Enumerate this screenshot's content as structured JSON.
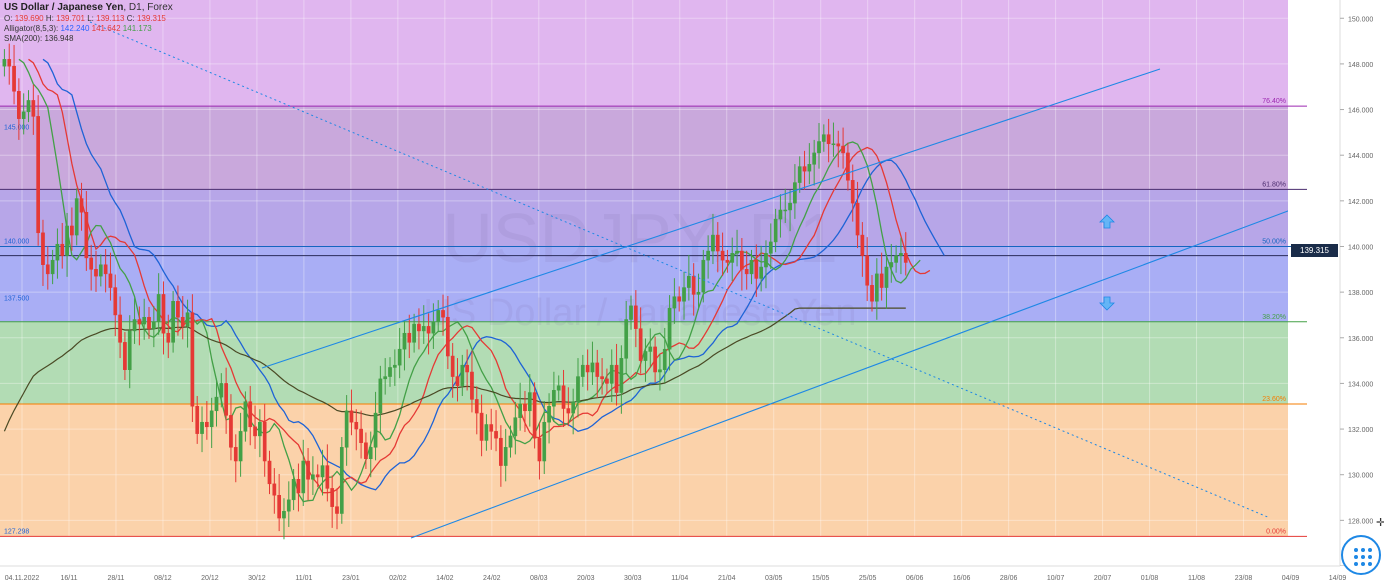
{
  "header": {
    "symbol": "US Dollar / Japanese Yen",
    "timeframe": "D1",
    "market": "Forex",
    "ohlc": {
      "o_label": "O:",
      "o": "139.690",
      "h_label": "H:",
      "h": "139.701",
      "l_label": "L:",
      "l": "139.113",
      "c_label": "C:",
      "c": "139.315"
    },
    "alligator": {
      "label": "Alligator(8,5,3):",
      "jaw": "142.240",
      "teeth": "141.642",
      "lips": "141.173"
    },
    "sma": {
      "label": "SMA(200):",
      "value": "136.948"
    }
  },
  "watermark": {
    "line1": "USDJPY, D1",
    "line2": "US Dollar / Japanese Yen"
  },
  "current_price": "139.315",
  "chart_data": {
    "type": "candlestick",
    "title": "US Dollar / Japanese Yen, D1, Forex",
    "price_axis": {
      "ticks": [
        "150.000",
        "148.000",
        "146.000",
        "144.000",
        "142.000",
        "140.000",
        "138.000",
        "136.000",
        "134.000",
        "132.000",
        "130.000",
        "128.000",
        "126.000"
      ],
      "range": [
        126.0,
        150.8
      ]
    },
    "time_axis": {
      "ticks": [
        "04.11.2022",
        "16/11",
        "28/11",
        "08/12",
        "20/12",
        "30/12",
        "11/01",
        "23/01",
        "02/02",
        "14/02",
        "24/02",
        "08/03",
        "20/03",
        "30/03",
        "11/04",
        "21/04",
        "03/05",
        "15/05",
        "25/05",
        "06/06",
        "16/06",
        "28/06",
        "10/07",
        "20/07",
        "01/08",
        "11/08",
        "23/08",
        "04/09",
        "14/09"
      ]
    },
    "fibonacci": [
      {
        "level": "76.40%",
        "price": 146.15,
        "color": "#9c27b0"
      },
      {
        "level": "61.80%",
        "price": 142.5,
        "color": "#4a2c6e"
      },
      {
        "level": "50.00%",
        "price": 140.0,
        "color": "#1565c0"
      },
      {
        "level": "38.20%",
        "price": 136.7,
        "color": "#43a047"
      },
      {
        "level": "23.60%",
        "price": 133.1,
        "color": "#f57c00"
      },
      {
        "level": "0.00%",
        "price": 127.3,
        "color": "#e53935"
      }
    ],
    "horizontal_levels": [
      {
        "label": "145.000",
        "price": 145.0
      },
      {
        "label": "140.000",
        "price": 140.0
      },
      {
        "label": "137.500",
        "price": 137.5
      },
      {
        "label": "127.298",
        "price": 127.3
      }
    ],
    "extra_levels": [
      139.6
    ],
    "closes": [
      148.2,
      147.9,
      146.8,
      145.6,
      145.9,
      146.4,
      145.7,
      140.6,
      139.2,
      138.8,
      139.4,
      140.1,
      139.6,
      140.9,
      140.5,
      142.1,
      141.5,
      139.5,
      139.0,
      138.7,
      139.2,
      138.8,
      138.2,
      137.0,
      135.8,
      134.6,
      136.3,
      136.8,
      136.6,
      136.9,
      136.4,
      136.7,
      137.9,
      136.2,
      135.8,
      137.6,
      136.9,
      136.5,
      137.1,
      133.0,
      131.8,
      132.3,
      132.1,
      132.8,
      133.4,
      134.0,
      132.6,
      131.2,
      130.6,
      131.9,
      133.2,
      132.1,
      131.7,
      132.3,
      130.6,
      129.6,
      129.1,
      128.1,
      128.4,
      128.9,
      129.8,
      129.2,
      130.6,
      129.8,
      130.0,
      129.9,
      130.4,
      129.4,
      128.6,
      128.3,
      131.2,
      132.8,
      132.3,
      132.0,
      131.4,
      130.7,
      131.2,
      132.7,
      134.2,
      134.3,
      134.7,
      134.8,
      135.5,
      136.2,
      135.8,
      136.6,
      136.3,
      136.5,
      136.2,
      136.7,
      137.2,
      136.9,
      135.2,
      134.3,
      133.9,
      134.8,
      134.5,
      133.3,
      132.7,
      131.5,
      132.2,
      131.9,
      131.6,
      130.4,
      131.2,
      131.7,
      132.5,
      133.1,
      132.8,
      133.6,
      131.6,
      130.6,
      132.3,
      133.0,
      133.7,
      133.9,
      132.9,
      132.7,
      133.2,
      134.3,
      134.8,
      134.5,
      134.9,
      134.3,
      134.2,
      134.0,
      134.8,
      133.6,
      135.1,
      136.8,
      137.4,
      136.4,
      135.0,
      135.4,
      135.6,
      134.5,
      134.6,
      135.5,
      137.3,
      137.8,
      137.6,
      138.2,
      138.7,
      137.9,
      138.0,
      139.4,
      139.8,
      140.5,
      139.8,
      139.4,
      139.3,
      139.7,
      139.8,
      139.0,
      138.8,
      139.4,
      138.6,
      139.1,
      139.7,
      140.2,
      141.2,
      141.6,
      141.6,
      141.9,
      142.8,
      143.5,
      143.3,
      143.6,
      144.1,
      144.6,
      144.9,
      144.5,
      144.5,
      144.4,
      144.1,
      142.9,
      141.9,
      140.5,
      139.6,
      138.3,
      137.6,
      138.8,
      138.2,
      139.1,
      139.3,
      139.6,
      139.7,
      139.3
    ],
    "lines": [
      {
        "name": "Alligator Jaw",
        "color": "#1e63d6"
      },
      {
        "name": "Alligator Teeth",
        "color": "#e53935"
      },
      {
        "name": "Alligator Lips",
        "color": "#43a047"
      },
      {
        "name": "SMA(200)",
        "color": "#4a4a25"
      }
    ],
    "bullish_color": "#43a047",
    "bearish_color": "#e53935"
  }
}
